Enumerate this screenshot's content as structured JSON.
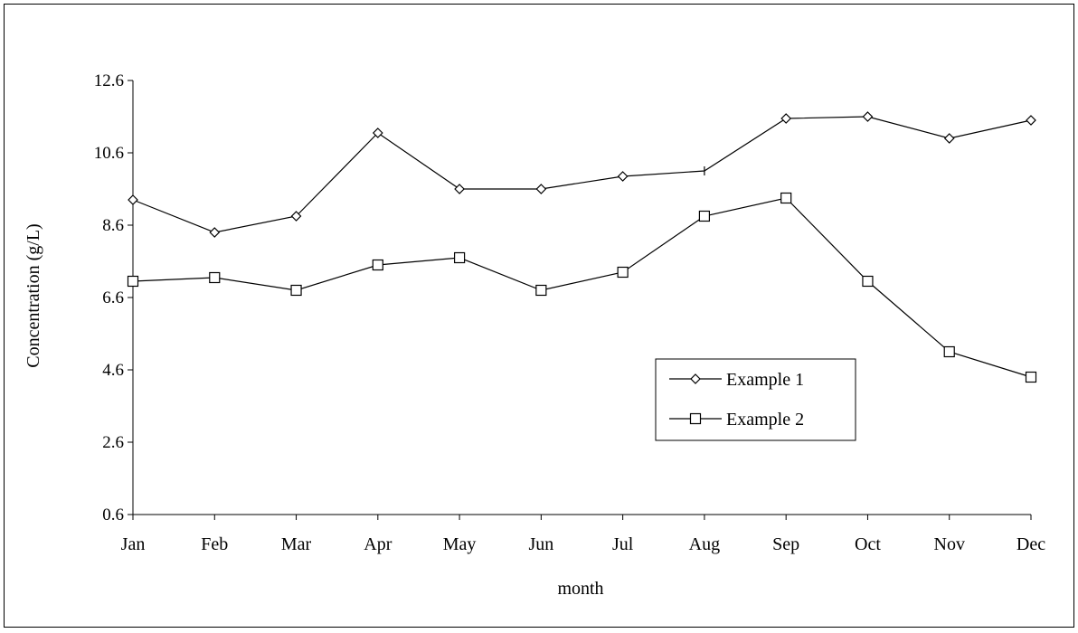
{
  "chart_data": {
    "type": "line",
    "title": "",
    "xlabel": "month",
    "ylabel": "Concentration (g/L)",
    "categories": [
      "Jan",
      "Feb",
      "Mar",
      "Apr",
      "May",
      "Jun",
      "Jul",
      "Aug",
      "Sep",
      "Oct",
      "Nov",
      "Dec"
    ],
    "ylim": [
      0.6,
      12.6
    ],
    "yticks": [
      "0.6",
      "2.6",
      "4.6",
      "6.6",
      "8.6",
      "10.6",
      "12.6"
    ],
    "grid": false,
    "legend_position": "lower-right",
    "series": [
      {
        "name": "Example 1",
        "marker": "diamond",
        "color": "#000000",
        "values": [
          9.3,
          8.4,
          8.85,
          11.15,
          9.6,
          9.6,
          9.95,
          10.1,
          11.55,
          11.6,
          11.0,
          11.5
        ]
      },
      {
        "name": "Example 2",
        "marker": "square",
        "color": "#000000",
        "values": [
          7.05,
          7.15,
          6.8,
          7.5,
          7.7,
          6.8,
          7.3,
          8.85,
          9.35,
          7.05,
          5.1,
          4.4
        ]
      }
    ]
  }
}
